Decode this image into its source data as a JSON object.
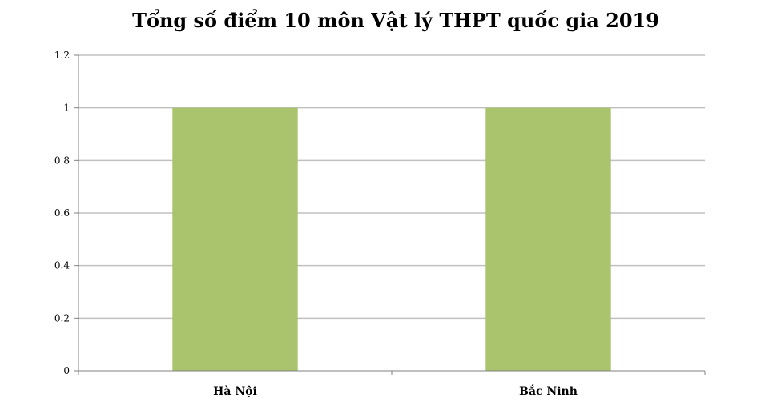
{
  "chart_data": {
    "type": "bar",
    "title": "Tổng số điểm 10 môn Vật lý THPT quốc gia 2019",
    "categories": [
      "Hà Nội",
      "Bắc Ninh"
    ],
    "values": [
      1,
      1
    ],
    "ylim": [
      0,
      1.2
    ],
    "yticks": [
      "0",
      "0.2",
      "0.4",
      "0.6",
      "0.8",
      "1",
      "1.2"
    ],
    "ytick_values": [
      0,
      0.2,
      0.4,
      0.6,
      0.8,
      1,
      1.2
    ],
    "grid": true,
    "legend": "none",
    "colors": {
      "bar": "#a9c46c",
      "grid": "#c0c0c0",
      "axis": "#808080"
    }
  }
}
